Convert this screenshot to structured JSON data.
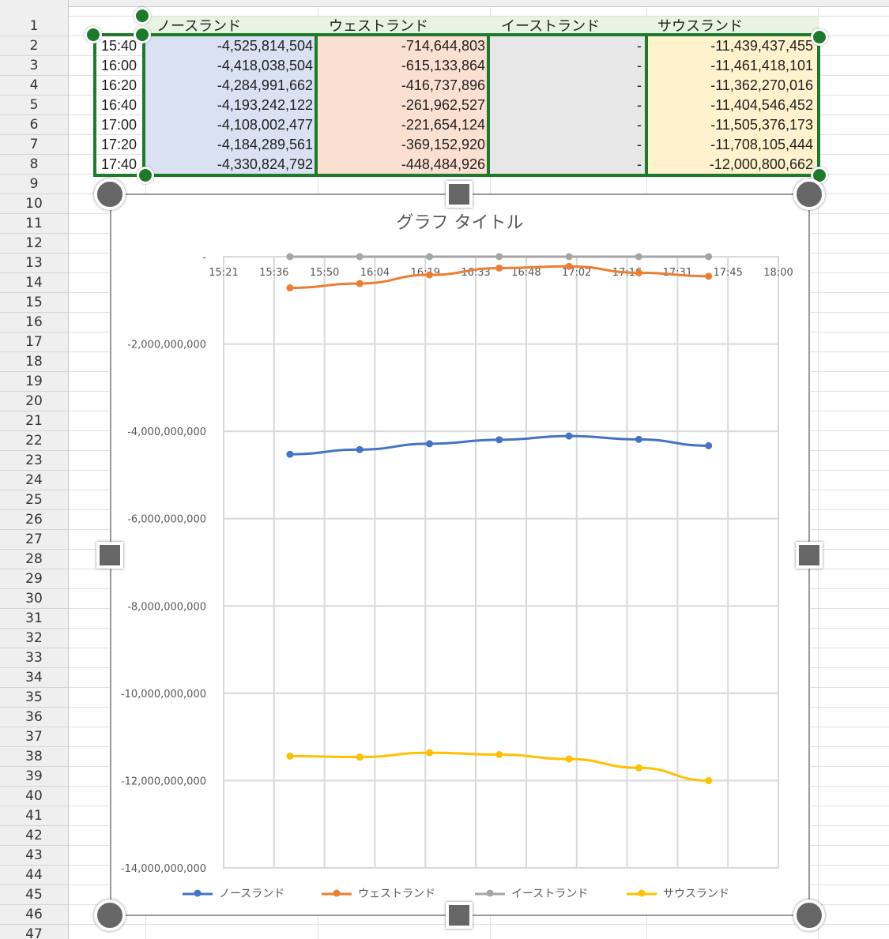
{
  "sheet": {
    "row_numbers": [
      "1",
      "2",
      "3",
      "4",
      "5",
      "6",
      "7",
      "8",
      "9",
      "10",
      "11",
      "12",
      "13",
      "14",
      "15",
      "16",
      "17",
      "18",
      "19",
      "20",
      "21",
      "22",
      "23",
      "24",
      "25",
      "26",
      "27",
      "28",
      "29",
      "30",
      "31",
      "32",
      "33",
      "34",
      "35",
      "36",
      "37",
      "38",
      "39",
      "40",
      "41",
      "42",
      "43",
      "44",
      "45",
      "46",
      "47"
    ],
    "headers": [
      "ノースランド",
      "ウェストランド",
      "イーストランド",
      "サウスランド"
    ],
    "rows": [
      {
        "time": "15:40",
        "north": "-4,525,814,504",
        "west": "-714,644,803",
        "east": "-",
        "south": "-11,439,437,455"
      },
      {
        "time": "16:00",
        "north": "-4,418,038,504",
        "west": "-615,133,864",
        "east": "-",
        "south": "-11,461,418,101"
      },
      {
        "time": "16:20",
        "north": "-4,284,991,662",
        "west": "-416,737,896",
        "east": "-",
        "south": "-11,362,270,016"
      },
      {
        "time": "16:40",
        "north": "-4,193,242,122",
        "west": "-261,962,527",
        "east": "-",
        "south": "-11,404,546,452"
      },
      {
        "time": "17:00",
        "north": "-4,108,002,477",
        "west": "-221,654,124",
        "east": "-",
        "south": "-11,505,376,173"
      },
      {
        "time": "17:20",
        "north": "-4,184,289,561",
        "west": "-369,152,920",
        "east": "-",
        "south": "-11,708,105,444"
      },
      {
        "time": "17:40",
        "north": "-4,330,824,792",
        "west": "-448,484,926",
        "east": "-",
        "south": "-12,000,800,662"
      }
    ],
    "colors": {
      "north_fill": "#d9e1f2",
      "west_fill": "#fbe0d1",
      "east_fill": "#e7e7e7",
      "south_fill": "#fff2cc",
      "header_fill": "#e8f3e2",
      "selection": "#1d7a2b"
    }
  },
  "chart_data": {
    "type": "line",
    "title": "グラフ タイトル",
    "x_tick_labels": [
      "15:21",
      "15:36",
      "15:50",
      "16:04",
      "16:19",
      "16:33",
      "16:48",
      "17:02",
      "17:16",
      "17:31",
      "17:45",
      "18:00"
    ],
    "x": [
      "15:40",
      "16:00",
      "16:20",
      "16:40",
      "17:00",
      "17:20",
      "17:40"
    ],
    "xlim": [
      "15:21",
      "18:00"
    ],
    "ylim": [
      -14000000000,
      0
    ],
    "y_tick_labels": [
      "-",
      "-2,000,000,000",
      "-4,000,000,000",
      "-6,000,000,000",
      "-8,000,000,000",
      "-10,000,000,000",
      "-12,000,000,000",
      "-14,000,000,000"
    ],
    "x_axis_position": "top",
    "grid": true,
    "legend_position": "bottom",
    "series": [
      {
        "name": "ノースランド",
        "color": "#4472c4",
        "values": [
          -4525814504,
          -4418038504,
          -4284991662,
          -4193242122,
          -4108002477,
          -4184289561,
          -4330824792
        ]
      },
      {
        "name": "ウェストランド",
        "color": "#ed7d31",
        "values": [
          -714644803,
          -615133864,
          -416737896,
          -261962527,
          -221654124,
          -369152920,
          -448484926
        ]
      },
      {
        "name": "イーストランド",
        "color": "#a5a5a5",
        "values": [
          0,
          0,
          0,
          0,
          0,
          0,
          0
        ]
      },
      {
        "name": "サウスランド",
        "color": "#ffc000",
        "values": [
          -11439437455,
          -11461418101,
          -11362270016,
          -11404546452,
          -11505376173,
          -11708105444,
          -12000800662
        ]
      }
    ]
  }
}
